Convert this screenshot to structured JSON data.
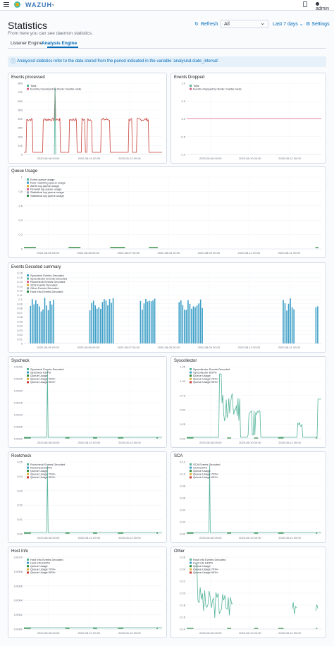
{
  "topbar": {
    "brand": "WAZUH",
    "user": "admin"
  },
  "header": {
    "title": "Statistics",
    "subtitle": "From here you can see daemon statistics.",
    "refresh_label": "Refresh",
    "select_value": "All",
    "period_label": "Last 7 days",
    "settings_label": "Settings"
  },
  "tabs": [
    {
      "label": "Listener Engine"
    },
    {
      "label": "Analysis Engine"
    }
  ],
  "callout": {
    "text": "Analysisd statistics refer to the data stored from the period indicated in the variable 'analysisd.state_interval'."
  },
  "colors": {
    "teal": "#54b399",
    "blue": "#3e9fc7",
    "pink": "#d36086",
    "green": "#2f8a3e",
    "yellow": "#dcb43c",
    "red": "#c8403a",
    "gray": "#9aa3b5",
    "orange": "#e7664c"
  },
  "chart_data": [
    {
      "id": "events-processed",
      "title": "Events processed",
      "type": "line",
      "yticks": [
        "0",
        "100",
        "200",
        "300",
        "400",
        "500",
        "600",
        "700",
        "800"
      ],
      "ylim": [
        0,
        850
      ],
      "xticks": [
        "2020-08-08 00:00",
        "2020-08-10 00:00",
        "2020-08-12 00:00"
      ],
      "legend": [
        "Total",
        "Events processed by Node: master-node"
      ],
      "series_colors": [
        "#54b399",
        "#d36086"
      ]
    },
    {
      "id": "events-dropped",
      "title": "Events Dropped",
      "type": "line",
      "yticks": [
        "-1.0",
        "-0.5",
        "0.0",
        "0.5",
        "1.0"
      ],
      "ylim": [
        -1,
        1
      ],
      "xticks": [
        "2020-08-08 00:00",
        "2020-08-10 00:00",
        "2020-08-12 00:00"
      ],
      "legend": [
        "Total",
        "Events dropped by Node: master-node"
      ],
      "series_colors": [
        "#54b399",
        "#d36086"
      ]
    },
    {
      "id": "queue-usage",
      "title": "Queue Usage",
      "type": "line",
      "yticks": [
        "0",
        "0.2",
        "0.4",
        "0.6",
        "0.8",
        "1"
      ],
      "ylim": [
        0,
        1
      ],
      "xticks": [
        "2020-08-05 00:00",
        "2020-08-06 00:00",
        "2020-08-07 00:00",
        "2020-08-08 00:00",
        "2020-08-09 00:00",
        "2020-08-10 00:00",
        "2020-08-11 00:00"
      ],
      "legend": [
        "Event queue usage",
        "Rule matching queue usage",
        "Alerts log queue usage",
        "Firewall log queue usage",
        "Statistical log queue usage",
        "Statistical log queue usage"
      ],
      "series_colors": [
        "#54b399",
        "#3e9fc7",
        "#dcb43c",
        "#d36086",
        "#9aa3b5",
        "#2f8a3e"
      ]
    },
    {
      "id": "events-decoded-summary",
      "title": "Events Decoded summary",
      "type": "bar",
      "yticks": [
        "0",
        "0.01",
        "0.02",
        "0.03",
        "0.04",
        "0.05",
        "0.06",
        "0.07",
        "0.08",
        "0.09",
        "0.1",
        "0.11",
        "0.12",
        "0.13",
        "0.14",
        "0.15",
        "0.16"
      ],
      "ylim": [
        0,
        0.165
      ],
      "xticks": [
        "2020-08-05 00:00",
        "2020-08-06 00:00",
        "2020-08-07 00:00",
        "2020-08-08 00:00",
        "2020-08-09 00:00",
        "2020-08-10 00:00",
        "2020-08-11 00:00"
      ],
      "legend": [
        "Syscheck Events Decoded",
        "Syscollector Events Decoded",
        "Rootcheck Events Decoded",
        "SCA Events Decoded",
        "Other Events Decoded",
        "Host Info Events Decoded"
      ],
      "series_colors": [
        "#3e9fc7",
        "#54b399",
        "#d36086",
        "#dcb43c",
        "#9aa3b5",
        "#2f8a3e"
      ]
    },
    {
      "id": "syscheck",
      "title": "Syscheck",
      "type": "line",
      "yticks": [
        "0.0000",
        "0.0005",
        "0.0010",
        "0.0015",
        "0.0020",
        "0.0025",
        "0.0030"
      ],
      "ylim": [
        0,
        0.0031
      ],
      "xticks": [
        "2020-08-08 00:00",
        "2020-08-10 00:00",
        "2020-08-12 00:00"
      ],
      "legend": [
        "Syscheck Events Decoded",
        "Syscheck EDPS",
        "Queue Usage",
        "Queue Usage 70%+",
        "Queue Usage 90%+"
      ],
      "series_colors": [
        "#54b399",
        "#3e9fc7",
        "#2f8a3e",
        "#dcb43c",
        "#c8403a"
      ]
    },
    {
      "id": "syscollector",
      "title": "Syscollector",
      "type": "line",
      "yticks": [
        "0.00",
        "0.25",
        "0.50",
        "0.75",
        "1.00",
        "1.25"
      ],
      "ylim": [
        0,
        1.3
      ],
      "xticks": [
        "2020-08-08 00:00",
        "2020-08-10 00:00",
        "2020-08-12 00:00"
      ],
      "legend": [
        "Syscollector Events Decoded",
        "Syscollector EDPS",
        "Queue Usage",
        "Queue Usage 70%+",
        "Queue Usage 90%+"
      ],
      "series_colors": [
        "#54b399",
        "#3e9fc7",
        "#2f8a3e",
        "#dcb43c",
        "#c8403a"
      ]
    },
    {
      "id": "rootcheck",
      "title": "Rootcheck",
      "type": "line",
      "yticks": [
        "0.00",
        "0.01",
        "0.02",
        "0.03",
        "0.04",
        "0.05"
      ],
      "ylim": [
        0,
        0.052
      ],
      "xticks": [
        "2020-08-08 00:00",
        "2020-08-10 00:00",
        "2020-08-12 00:00"
      ],
      "legend": [
        "Rootcheck Events Decoded",
        "Rootcheck EDPS",
        "Queue Usage",
        "Queue Usage 70%+",
        "Queue Usage 90%+"
      ],
      "series_colors": [
        "#54b399",
        "#3e9fc7",
        "#2f8a3e",
        "#dcb43c",
        "#c8403a"
      ]
    },
    {
      "id": "sca",
      "title": "SCA",
      "type": "line",
      "yticks": [
        "0.00",
        "0.02",
        "0.04",
        "0.06",
        "0.08",
        "0.10",
        "0.12"
      ],
      "ylim": [
        0,
        0.125
      ],
      "xticks": [
        "2020-08-08 00:00",
        "2020-08-10 00:00",
        "2020-08-12 00:00"
      ],
      "legend": [
        "SCA Events Decoded",
        "SCA EDPS",
        "Queue Usage",
        "Queue Usage 70%+",
        "Queue Usage 90%+"
      ],
      "series_colors": [
        "#54b399",
        "#3e9fc7",
        "#2f8a3e",
        "#dcb43c",
        "#c8403a"
      ]
    },
    {
      "id": "host-info",
      "title": "Host Info",
      "type": "line",
      "yticks": [
        "0.0000",
        "0.0002",
        "0.0004",
        "0.0006",
        "0.0008",
        "0.0010"
      ],
      "ylim": [
        0,
        0.00105
      ],
      "xticks": [
        "2020-08-08 00:00",
        "2020-08-10 00:00",
        "2020-08-12 00:00"
      ],
      "legend": [
        "Host Info Events Decoded",
        "Host Info EDPS",
        "Queue Usage",
        "Queue Usage 70%+",
        "Queue Usage 90%+"
      ],
      "series_colors": [
        "#54b399",
        "#3e9fc7",
        "#2f8a3e",
        "#dcb43c",
        "#c8403a"
      ]
    },
    {
      "id": "other",
      "title": "Other",
      "type": "line",
      "yticks": [
        "0.14",
        "0.16",
        "0.18",
        "0.20",
        "0.22",
        "0.24",
        "0.26"
      ],
      "ylim": [
        0.13,
        0.27
      ],
      "xticks": [
        "2020-08-08 00:00",
        "2020-08-10 00:00",
        "2020-08-12 00:00"
      ],
      "legend": [
        "Host Info Events Decoded",
        "Host Info EDPS",
        "Queue Usage",
        "Queue Usage 70%+",
        "Queue Usage 90%+"
      ],
      "series_colors": [
        "#54b399",
        "#3e9fc7",
        "#2f8a3e",
        "#dcb43c",
        "#c8403a"
      ]
    }
  ]
}
